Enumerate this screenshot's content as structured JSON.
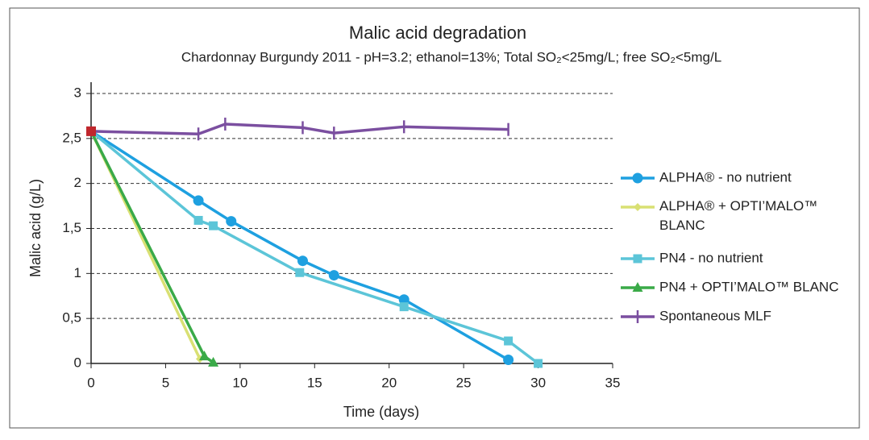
{
  "chart_data": {
    "type": "line",
    "title": "Malic acid degradation",
    "subtitle": "Chardonnay Burgundy 2011 - pH=3.2; ethanol=13%; Total SO₂<25mg/L; free SO₂<5mg/L",
    "xlabel": "Time (days)",
    "ylabel": "Malic acid (g/L)",
    "xlim": [
      0,
      35
    ],
    "xticks": [
      0,
      5,
      10,
      15,
      20,
      25,
      30,
      35
    ],
    "ylim": [
      0,
      3
    ],
    "yticks": [
      0,
      {
        "value": 0.5,
        "label": "0,5"
      },
      1,
      {
        "value": 1.5,
        "label": "1,5"
      },
      2,
      {
        "value": 2.5,
        "label": "2,5"
      },
      3
    ],
    "grid": true,
    "legend": "right",
    "start_marker_color": "#c0272d",
    "series": [
      {
        "name": "ALPHA® - no nutrient",
        "color": "#1ea0e0",
        "marker": "circle",
        "x": [
          0,
          7.2,
          9.4,
          14.2,
          16.3,
          21,
          28
        ],
        "values": [
          2.58,
          1.81,
          1.58,
          1.14,
          0.98,
          0.71,
          0.04
        ]
      },
      {
        "name": "ALPHA® + OPTI’MALO™ BLANC",
        "color": "#d9e073",
        "marker": "diamond",
        "x": [
          0,
          7.3
        ],
        "values": [
          2.58,
          0.05
        ]
      },
      {
        "name": "PN4 - no nutrient",
        "color": "#5cc5d8",
        "marker": "square",
        "x": [
          0,
          7.2,
          8.2,
          14,
          21,
          28,
          30
        ],
        "values": [
          2.58,
          1.59,
          1.53,
          1.01,
          0.63,
          0.25,
          0
        ]
      },
      {
        "name": "PN4 + OPTI’MALO™ BLANC",
        "color": "#3aaa48",
        "marker": "triangle",
        "x": [
          0,
          7.6,
          8.2
        ],
        "values": [
          2.58,
          0.08,
          0.01
        ]
      },
      {
        "name": "Spontaneous MLF",
        "color": "#7b4fa0",
        "marker": "tick",
        "x": [
          0,
          7.2,
          9,
          14.2,
          16.3,
          21,
          28
        ],
        "values": [
          2.58,
          2.55,
          2.66,
          2.62,
          2.56,
          2.63,
          2.6
        ]
      }
    ]
  }
}
